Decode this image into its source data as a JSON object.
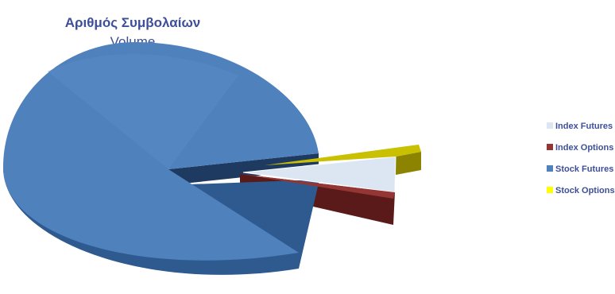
{
  "chart_data": {
    "type": "pie",
    "title": "Αριθμός Συμβολαίων",
    "subtitle": "Volume",
    "exploded": true,
    "three_d": true,
    "legend_position": "right",
    "categories": [
      "Index Futures",
      "Index Options",
      "Stock Futures",
      "Stock Options"
    ],
    "values": [
      8.5,
      1.0,
      89.0,
      1.5
    ],
    "colors": [
      "#dce6f2",
      "#943634",
      "#4f81bd",
      "#ffff00"
    ]
  }
}
